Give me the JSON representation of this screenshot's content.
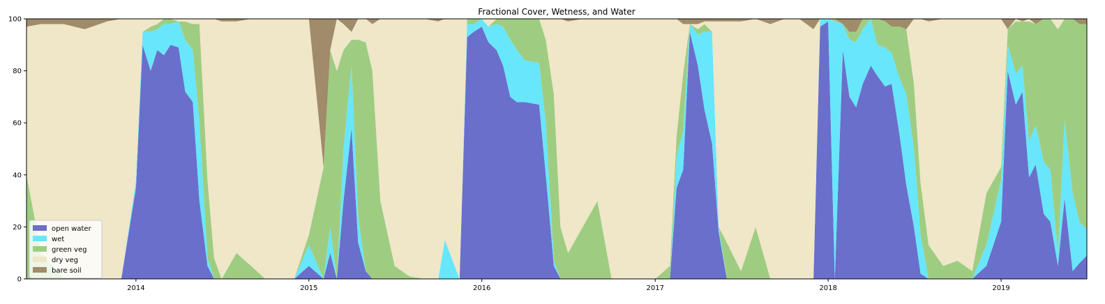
{
  "figure": {
    "title": "Fractional Cover, Wetness, and Water"
  },
  "chart_data": {
    "type": "area",
    "stacked": true,
    "title": "Fractional Cover, Wetness, and Water",
    "xlabel": "",
    "ylabel": "",
    "xlim": [
      "2013-05-15",
      "2019-07-01"
    ],
    "ylim": [
      0,
      100
    ],
    "x_ticks": [
      "2014",
      "2015",
      "2016",
      "2017",
      "2018",
      "2019"
    ],
    "y_ticks": [
      0,
      20,
      40,
      60,
      80,
      100
    ],
    "grid": false,
    "legend": {
      "placement": "lower-left"
    },
    "x": [
      "2013-05-15",
      "2013-06-15",
      "2013-08-01",
      "2013-09-15",
      "2013-11-01",
      "2013-12-01",
      "2014-01-01",
      "2014-01-15",
      "2014-02-01",
      "2014-02-15",
      "2014-03-01",
      "2014-03-15",
      "2014-04-01",
      "2014-04-15",
      "2014-05-01",
      "2014-05-15",
      "2014-06-01",
      "2014-06-15",
      "2014-07-01",
      "2014-08-01",
      "2014-09-01",
      "2014-10-01",
      "2014-11-01",
      "2014-12-01",
      "2015-01-01",
      "2015-02-01",
      "2015-02-15",
      "2015-03-01",
      "2015-03-15",
      "2015-04-01",
      "2015-04-15",
      "2015-05-01",
      "2015-05-15",
      "2015-06-01",
      "2015-07-01",
      "2015-08-01",
      "2015-09-01",
      "2015-10-01",
      "2015-10-15",
      "2015-11-15",
      "2015-12-01",
      "2015-12-15",
      "2016-01-01",
      "2016-01-15",
      "2016-02-01",
      "2016-02-15",
      "2016-03-01",
      "2016-03-15",
      "2016-04-01",
      "2016-05-01",
      "2016-05-15",
      "2016-06-01",
      "2016-06-15",
      "2016-07-01",
      "2016-08-01",
      "2016-09-01",
      "2016-10-01",
      "2016-11-01",
      "2016-12-01",
      "2017-01-01",
      "2017-02-01",
      "2017-02-15",
      "2017-03-01",
      "2017-03-15",
      "2017-04-01",
      "2017-04-15",
      "2017-05-01",
      "2017-05-15",
      "2017-06-01",
      "2017-07-01",
      "2017-08-01",
      "2017-09-01",
      "2017-10-01",
      "2017-11-01",
      "2017-12-01",
      "2017-12-15",
      "2018-01-01",
      "2018-01-15",
      "2018-02-01",
      "2018-02-15",
      "2018-03-01",
      "2018-03-15",
      "2018-04-01",
      "2018-04-15",
      "2018-05-01",
      "2018-05-15",
      "2018-06-01",
      "2018-06-15",
      "2018-07-01",
      "2018-07-15",
      "2018-08-01",
      "2018-09-01",
      "2018-10-01",
      "2018-11-01",
      "2018-12-01",
      "2019-01-01",
      "2019-01-15",
      "2019-02-01",
      "2019-02-15",
      "2019-03-01",
      "2019-03-15",
      "2019-04-01",
      "2019-04-15",
      "2019-05-01",
      "2019-05-15",
      "2019-06-01",
      "2019-06-15",
      "2019-07-01"
    ],
    "series": [
      {
        "name": "open water",
        "color": "#6a6fcb",
        "values": [
          0,
          0,
          0,
          0,
          0,
          0,
          35,
          90,
          80,
          88,
          86,
          90,
          89,
          72,
          68,
          30,
          5,
          0,
          0,
          0,
          0,
          0,
          0,
          0,
          5,
          0,
          10,
          0,
          30,
          58,
          14,
          3,
          0,
          0,
          0,
          0,
          0,
          0,
          0,
          0,
          93,
          95,
          97,
          91,
          88,
          82,
          70,
          68,
          68,
          67,
          40,
          5,
          0,
          0,
          0,
          0,
          0,
          0,
          0,
          0,
          0,
          35,
          42,
          95,
          82,
          65,
          52,
          18,
          0,
          0,
          0,
          0,
          0,
          0,
          0,
          97,
          99,
          0,
          88,
          70,
          66,
          75,
          82,
          78,
          74,
          75,
          55,
          36,
          20,
          2,
          0,
          0,
          0,
          0,
          5,
          22,
          80,
          67,
          72,
          39,
          44,
          25,
          22,
          5,
          31,
          3,
          6,
          9
        ]
      },
      {
        "name": "wet",
        "color": "#68e6fb",
        "values": [
          0,
          0,
          0,
          0,
          0,
          0,
          3,
          5,
          15,
          8,
          12,
          8,
          10,
          20,
          20,
          30,
          3,
          0,
          0,
          0,
          0,
          0,
          0,
          0,
          8,
          0,
          10,
          0,
          20,
          24,
          10,
          0,
          0,
          0,
          0,
          0,
          0,
          0,
          15,
          0,
          5,
          3,
          3,
          6,
          10,
          15,
          22,
          20,
          16,
          16,
          20,
          2,
          0,
          0,
          0,
          0,
          0,
          0,
          0,
          0,
          0,
          12,
          15,
          3,
          12,
          30,
          43,
          2,
          0,
          0,
          0,
          0,
          0,
          0,
          0,
          3,
          1,
          99,
          10,
          22,
          25,
          21,
          18,
          12,
          15,
          12,
          22,
          35,
          30,
          15,
          0,
          0,
          0,
          0,
          8,
          16,
          10,
          12,
          10,
          14,
          15,
          20,
          20,
          5,
          30,
          30,
          16,
          10
        ]
      },
      {
        "name": "green veg",
        "color": "#9ecd82",
        "values": [
          40,
          10,
          0,
          0,
          0,
          0,
          0,
          0,
          2,
          2,
          2,
          2,
          0,
          7,
          10,
          38,
          30,
          8,
          0,
          10,
          5,
          0,
          0,
          0,
          4,
          43,
          68,
          80,
          38,
          10,
          68,
          88,
          80,
          30,
          5,
          1,
          0,
          0,
          0,
          0,
          2,
          2,
          0,
          0,
          2,
          3,
          8,
          12,
          16,
          17,
          32,
          64,
          20,
          10,
          20,
          30,
          0,
          0,
          0,
          0,
          5,
          8,
          22,
          0,
          2,
          3,
          0,
          0,
          14,
          3,
          20,
          0,
          0,
          0,
          0,
          0,
          0,
          1,
          0,
          3,
          4,
          4,
          0,
          10,
          10,
          10,
          20,
          25,
          25,
          20,
          13,
          5,
          7,
          3,
          20,
          5,
          6,
          20,
          17,
          46,
          39,
          55,
          58,
          86,
          39,
          67,
          76,
          79
        ]
      },
      {
        "name": "dry veg",
        "color": "#f0e6c8",
        "values": [
          57,
          88,
          98,
          96,
          99,
          100,
          62,
          5,
          3,
          2,
          0,
          0,
          1,
          1,
          2,
          2,
          62,
          92,
          99,
          89,
          95,
          100,
          100,
          100,
          83,
          0,
          0,
          20,
          10,
          3,
          8,
          9,
          18,
          70,
          95,
          99,
          100,
          99,
          85,
          100,
          0,
          0,
          0,
          3,
          0,
          0,
          0,
          0,
          0,
          0,
          8,
          29,
          80,
          89,
          80,
          70,
          100,
          100,
          100,
          100,
          95,
          45,
          19,
          0,
          2,
          1,
          4,
          79,
          85,
          96,
          80,
          98,
          100,
          100,
          96,
          0,
          0,
          0,
          0,
          0,
          0,
          0,
          0,
          0,
          0,
          0,
          0,
          0,
          25,
          63,
          86,
          95,
          93,
          97,
          67,
          57,
          0,
          1,
          0,
          1,
          0,
          0,
          0,
          4,
          0,
          0,
          0,
          0
        ]
      },
      {
        "name": "bare soil",
        "color": "#a08b6a",
        "values": [
          3,
          2,
          2,
          4,
          1,
          0,
          0,
          0,
          0,
          0,
          0,
          0,
          0,
          0,
          0,
          0,
          0,
          0,
          1,
          1,
          0,
          0,
          0,
          0,
          0,
          57,
          12,
          0,
          2,
          5,
          0,
          0,
          2,
          0,
          0,
          0,
          0,
          1,
          0,
          0,
          0,
          0,
          0,
          0,
          0,
          0,
          0,
          0,
          0,
          0,
          0,
          0,
          0,
          1,
          0,
          0,
          0,
          0,
          0,
          0,
          0,
          0,
          2,
          2,
          2,
          1,
          1,
          1,
          1,
          1,
          0,
          2,
          0,
          0,
          4,
          0,
          0,
          0,
          2,
          5,
          5,
          0,
          0,
          0,
          1,
          3,
          3,
          4,
          0,
          0,
          1,
          0,
          0,
          0,
          0,
          0,
          4,
          0,
          1,
          0,
          2,
          0,
          0,
          0,
          0,
          0,
          2,
          2
        ]
      }
    ]
  }
}
